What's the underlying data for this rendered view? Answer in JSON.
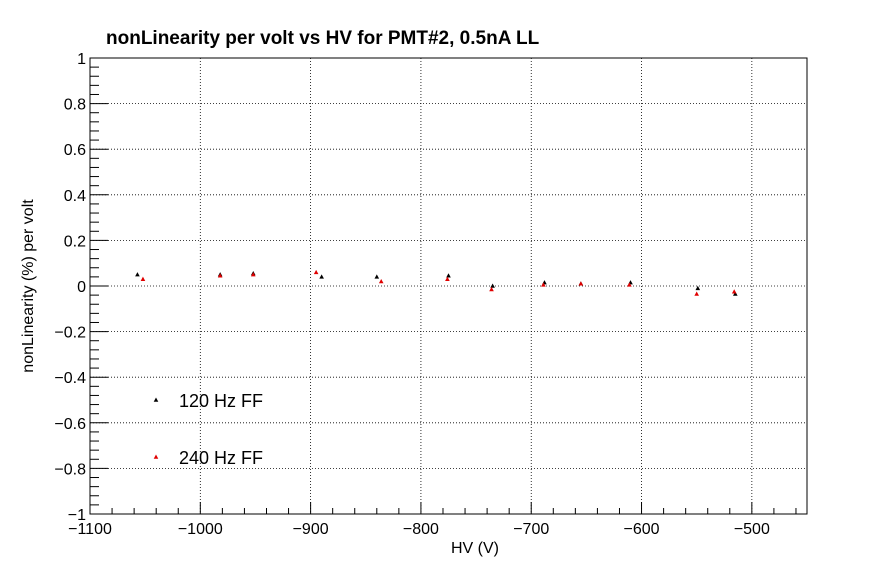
{
  "chart_data": {
    "type": "scatter",
    "title": "nonLinearity per volt vs HV for PMT#2, 0.5nA LL",
    "xlabel": "HV (V)",
    "ylabel": "nonLinearity (%) per volt",
    "xlim": [
      -1100,
      -450
    ],
    "ylim": [
      -1,
      1
    ],
    "grid": true,
    "legend_placement": "bottom-left",
    "x_ticks": [
      -1100,
      -1000,
      -900,
      -800,
      -700,
      -600,
      -500
    ],
    "x_tick_labels": [
      "−1100",
      "−1000",
      "−900",
      "−800",
      "−700",
      "−600",
      "−500"
    ],
    "y_ticks": [
      -1,
      -0.8,
      -0.6,
      -0.4,
      -0.2,
      0,
      0.2,
      0.4,
      0.6,
      0.8,
      1
    ],
    "y_tick_labels": [
      "−1",
      "−0.8",
      "−0.6",
      "−0.4",
      "−0.2",
      "0",
      "0.2",
      "0.4",
      "0.6",
      "0.8",
      "1"
    ],
    "series": [
      {
        "name": "120 Hz FF",
        "color": "#000000",
        "x": [
          -1057,
          -982,
          -952,
          -890,
          -840,
          -775,
          -735,
          -688,
          -655,
          -610,
          -549,
          -515
        ],
        "y": [
          0.05,
          0.05,
          0.055,
          0.04,
          0.04,
          0.045,
          0.0,
          0.015,
          0.01,
          0.015,
          -0.01,
          -0.035
        ]
      },
      {
        "name": "240 Hz FF",
        "color": "#e00000",
        "x": [
          -1052,
          -982,
          -952,
          -895,
          -836,
          -776,
          -736,
          -689,
          -655,
          -611,
          -550,
          -516
        ],
        "y": [
          0.03,
          0.045,
          0.05,
          0.06,
          0.02,
          0.03,
          -0.015,
          0.005,
          0.01,
          0.005,
          -0.035,
          -0.025
        ]
      }
    ]
  }
}
